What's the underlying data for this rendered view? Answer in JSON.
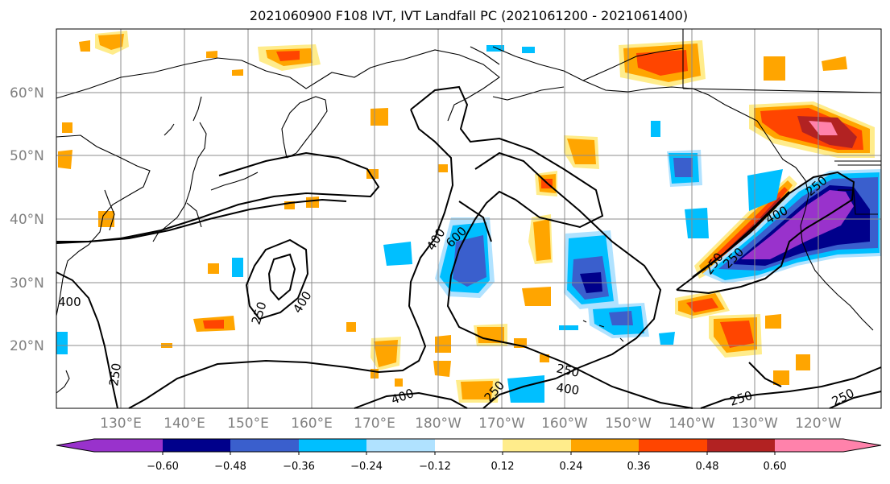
{
  "title": "2021060900 F108 IVT, IVT Landfall PC (2021061200 - 2021061400)",
  "lat_labels": [
    "60°N",
    "50°N",
    "40°N",
    "30°N",
    "20°N"
  ],
  "lon_labels": [
    "130°E",
    "140°E",
    "150°E",
    "160°E",
    "170°E",
    "180°W",
    "170°W",
    "160°W",
    "150°W",
    "140°W",
    "130°W",
    "120°W"
  ],
  "contour_labels": [
    "400",
    "600",
    "250",
    "400",
    "250",
    "400",
    "250",
    "400",
    "250",
    "400",
    "250",
    "250",
    "250",
    "400",
    "250",
    "250"
  ],
  "colorbar": {
    "ticks": [
      "−0.60",
      "−0.48",
      "−0.36",
      "−0.24",
      "−0.12",
      "0.12",
      "0.24",
      "0.36",
      "0.48",
      "0.60"
    ],
    "colors": [
      "#9932cc",
      "#00008b",
      "#3a5fcd",
      "#00bfff",
      "#b0e2ff",
      "#ffffff",
      "#ffec8b",
      "#ffa500",
      "#ff4500",
      "#b22222",
      "#ff82ab"
    ]
  }
}
